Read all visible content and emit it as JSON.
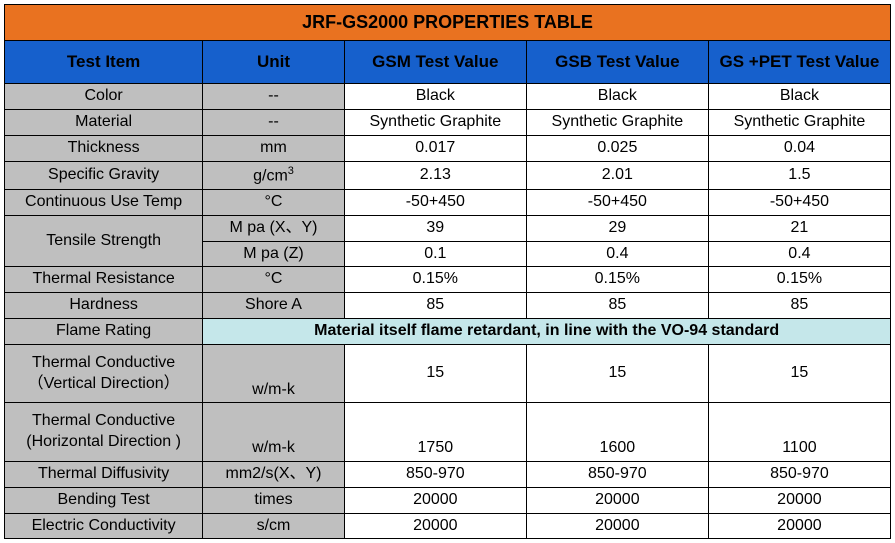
{
  "title": "JRF-GS2000 PROPERTIES TABLE",
  "colors": {
    "title_bg": "#e97220",
    "header_bg": "#1660cc",
    "label_bg": "#bfbfbf",
    "value_bg": "#ffffff",
    "flame_bg": "#c5e7ea",
    "border": "#000000"
  },
  "headers": {
    "test_item": "Test Item",
    "unit": "Unit",
    "gsm": "GSM Test Value",
    "gsb": "GSB Test Value",
    "gspet": "GS +PET Test Value"
  },
  "rows": {
    "color": {
      "label": "Color",
      "unit": "--",
      "gsm": "Black",
      "gsb": "Black",
      "gspet": "Black"
    },
    "material": {
      "label": "Material",
      "unit": "--",
      "gsm": "Synthetic Graphite",
      "gsb": "Synthetic Graphite",
      "gspet": "Synthetic Graphite"
    },
    "thickness": {
      "label": "Thickness",
      "unit": "mm",
      "gsm": "0.017",
      "gsb": "0.025",
      "gspet": "0.04"
    },
    "specific_gravity": {
      "label": "Specific Gravity",
      "unit_html": "g/cm³",
      "gsm": "2.13",
      "gsb": "2.01",
      "gspet": "1.5"
    },
    "cont_use_temp": {
      "label": "Continuous Use Temp",
      "unit": "°C",
      "gsm": "-50+450",
      "gsb": "-50+450",
      "gspet": "-50+450"
    },
    "tensile_strength": {
      "label": "Tensile Strength",
      "row1": {
        "unit": "M pa (X、Y)",
        "gsm": "39",
        "gsb": "29",
        "gspet": "21"
      },
      "row2": {
        "unit": "M pa (Z)",
        "gsm": "0.1",
        "gsb": "0.4",
        "gspet": "0.4"
      }
    },
    "thermal_resistance": {
      "label": "Thermal Resistance",
      "unit": "°C",
      "gsm": "0.15%",
      "gsb": "0.15%",
      "gspet": "0.15%"
    },
    "hardness": {
      "label": "Hardness",
      "unit": "Shore A",
      "gsm": "85",
      "gsb": "85",
      "gspet": "85"
    },
    "flame_rating": {
      "label": "Flame Rating",
      "note": "Material itself flame retardant, in line with the VO-94 standard"
    },
    "tc_vertical": {
      "label": "Thermal Conductive\n（Vertical Direction）",
      "unit": "w/m-k",
      "gsm": "15",
      "gsb": "15",
      "gspet": "15"
    },
    "tc_horizontal": {
      "label": "Thermal Conductive\n(Horizontal Direction )",
      "unit": "w/m-k",
      "gsm": "1750",
      "gsb": "1600",
      "gspet": "1100"
    },
    "thermal_diffusivity": {
      "label": "Thermal Diffusivity",
      "unit": "mm2/s(X、Y)",
      "gsm": "850-970",
      "gsb": "850-970",
      "gspet": "850-970"
    },
    "bending_test": {
      "label": "Bending Test",
      "unit": "times",
      "gsm": "20000",
      "gsb": "20000",
      "gspet": "20000"
    },
    "electric_conductivity": {
      "label": "Electric Conductivity",
      "unit": "s/cm",
      "gsm": "20000",
      "gsb": "20000",
      "gspet": "20000"
    }
  }
}
